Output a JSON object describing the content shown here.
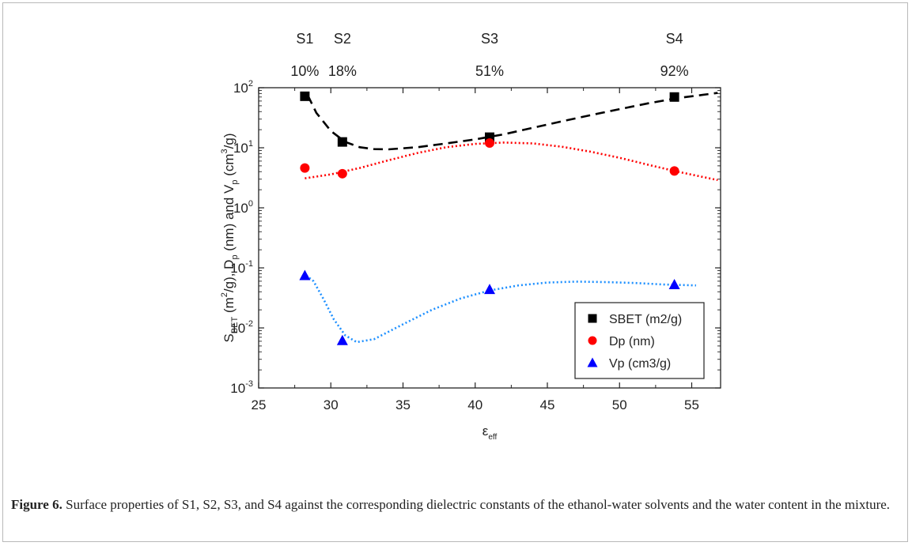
{
  "figure": {
    "label": "Figure 6.",
    "caption": "Surface properties of S1, S2, S3, and S4 against the corresponding dielectric constants of the ethanol-water solvents and the water content in the mixture."
  },
  "chart_data": {
    "type": "scatter",
    "xlabel": "ε",
    "xlabel_sub": "eff",
    "ylabel_parts": [
      "S",
      "BET",
      " (m",
      "2",
      "/g), D",
      "p",
      " (nm) and V",
      "p",
      " (cm",
      "3",
      "/g)"
    ],
    "xlim": [
      25,
      57
    ],
    "ylim": [
      0.001,
      100
    ],
    "yscale": "log",
    "x_ticks": [
      25,
      30,
      35,
      40,
      45,
      50,
      55
    ],
    "y_ticks": [
      {
        "value": 0.001,
        "base": "10",
        "exp": "-3"
      },
      {
        "value": 0.01,
        "base": "10",
        "exp": "-2"
      },
      {
        "value": 0.1,
        "base": "10",
        "exp": "-1"
      },
      {
        "value": 1,
        "base": "10",
        "exp": "0"
      },
      {
        "value": 10,
        "base": "10",
        "exp": "1"
      },
      {
        "value": 100,
        "base": "10",
        "exp": "2"
      }
    ],
    "top_labels": [
      {
        "x": 28.2,
        "name": "S1",
        "water": "10%"
      },
      {
        "x": 30.8,
        "name": "S2",
        "water": "18%"
      },
      {
        "x": 41.0,
        "name": "S3",
        "water": "51%"
      },
      {
        "x": 53.8,
        "name": "S4",
        "water": "92%"
      }
    ],
    "legend_position": "lower-right",
    "series": [
      {
        "name": "SBET (m2/g)",
        "marker": "square",
        "color": "#000000",
        "points": [
          [
            28.2,
            72
          ],
          [
            30.8,
            12.5
          ],
          [
            41.0,
            15
          ],
          [
            53.8,
            70
          ]
        ],
        "fit": {
          "color": "#000000",
          "style": "dashed",
          "points": [
            [
              28.4,
              75
            ],
            [
              29,
              38
            ],
            [
              30,
              19
            ],
            [
              31,
              12.5
            ],
            [
              32,
              10.2
            ],
            [
              33,
              9.5
            ],
            [
              34,
              9.4
            ],
            [
              36,
              10.2
            ],
            [
              38,
              11.8
            ],
            [
              40,
              13.8
            ],
            [
              42,
              16.8
            ],
            [
              44,
              21.5
            ],
            [
              46,
              27.5
            ],
            [
              48,
              35
            ],
            [
              50,
              44
            ],
            [
              52,
              55
            ],
            [
              54,
              67
            ],
            [
              56.8,
              82
            ]
          ]
        }
      },
      {
        "name": "Dp (nm)",
        "marker": "circle",
        "color": "#ff0000",
        "points": [
          [
            28.2,
            4.6
          ],
          [
            30.8,
            3.7
          ],
          [
            41.0,
            12.0
          ],
          [
            53.8,
            4.1
          ]
        ],
        "fit": {
          "color": "#ff0000",
          "style": "dotted",
          "points": [
            [
              28.2,
              3.1
            ],
            [
              30,
              3.6
            ],
            [
              32,
              4.6
            ],
            [
              34,
              6.2
            ],
            [
              36,
              8.2
            ],
            [
              38,
              10.2
            ],
            [
              40,
              11.6
            ],
            [
              42,
              12.2
            ],
            [
              44,
              11.8
            ],
            [
              46,
              10.4
            ],
            [
              48,
              8.6
            ],
            [
              50,
              6.8
            ],
            [
              52,
              5.2
            ],
            [
              54,
              4.0
            ],
            [
              56.8,
              2.9
            ]
          ]
        }
      },
      {
        "name": "Vp (cm3/g)",
        "marker": "triangle",
        "color": "#0000ff",
        "points": [
          [
            28.2,
            0.075
          ],
          [
            30.8,
            0.0062
          ],
          [
            41.0,
            0.044
          ],
          [
            53.8,
            0.053
          ]
        ],
        "fit": {
          "color": "#1e90ff",
          "style": "dotted",
          "points": [
            [
              28.3,
              0.075
            ],
            [
              28.8,
              0.06
            ],
            [
              29.5,
              0.03
            ],
            [
              30.2,
              0.014
            ],
            [
              31,
              0.0075
            ],
            [
              31.8,
              0.0058
            ],
            [
              33,
              0.0065
            ],
            [
              35,
              0.0115
            ],
            [
              37,
              0.02
            ],
            [
              39,
              0.031
            ],
            [
              41,
              0.042
            ],
            [
              43,
              0.051
            ],
            [
              45,
              0.057
            ],
            [
              47,
              0.059
            ],
            [
              49,
              0.058
            ],
            [
              51,
              0.056
            ],
            [
              53,
              0.053
            ],
            [
              55.3,
              0.051
            ]
          ]
        }
      }
    ]
  }
}
